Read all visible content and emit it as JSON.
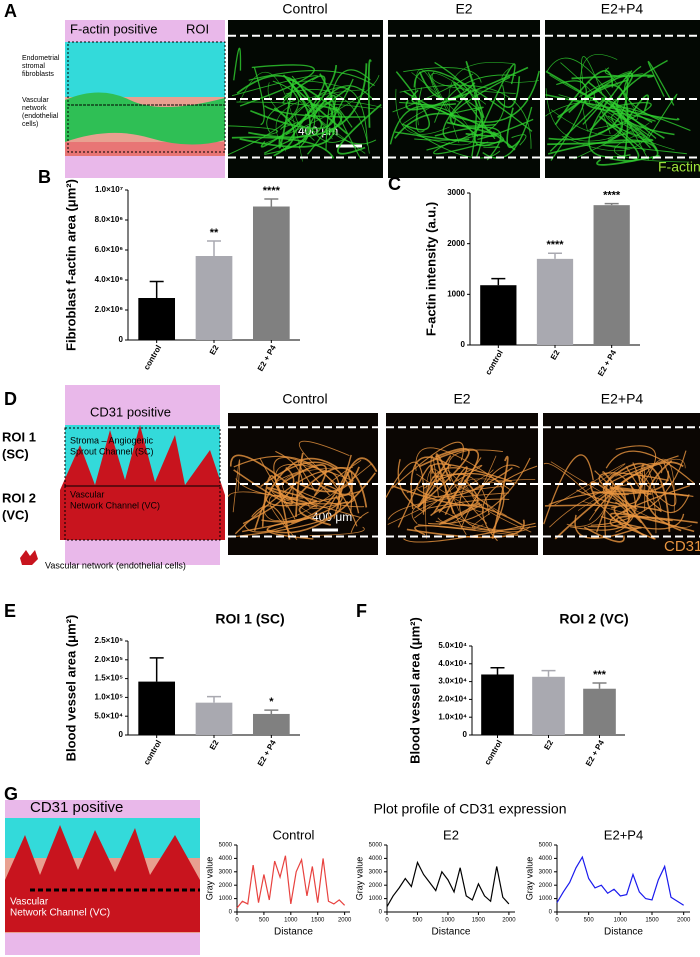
{
  "panels": {
    "A": {
      "label": "A",
      "schematic_title": "F-actin positive",
      "roi": "ROI",
      "fibroblast_label": [
        "Endometrial",
        "stromal",
        "fibroblasts"
      ],
      "vascular_label": [
        "Vascular",
        "network",
        "(endothelial",
        "cells)"
      ],
      "image_titles": [
        "Control",
        "E2",
        "E2+P4"
      ],
      "scale": "400 μm",
      "stain": "F-actin"
    },
    "B": {
      "label": "B"
    },
    "C": {
      "label": "C"
    },
    "D": {
      "label": "D",
      "schematic_title": "CD31 positive",
      "roi1": [
        "ROI 1",
        "(SC)"
      ],
      "roi2": [
        "ROI 2",
        "(VC)"
      ],
      "sc_label": [
        "Stroma – Angiogenic",
        "Sprout Channel (SC)"
      ],
      "vc_label": [
        "Vascular",
        "Network Channel (VC)"
      ],
      "legend": "Vascular  network (endothelial cells)",
      "image_titles": [
        "Control",
        "E2",
        "E2+P4"
      ],
      "scale": "400 μm",
      "stain": "CD31"
    },
    "E": {
      "label": "E"
    },
    "F": {
      "label": "F"
    },
    "G": {
      "label": "G",
      "schematic_title": "CD31 positive",
      "vc_label": [
        "Vascular",
        "Network Channel (VC)"
      ],
      "title": "Plot profile of CD31 expression"
    }
  },
  "chart_data": [
    {
      "type": "bar",
      "y_label": "Fibroblast f-actin area (μm²)",
      "categories": [
        "control",
        "E2",
        "E2 + P4"
      ],
      "colors": [
        "#000000",
        "#a9a9b0",
        "#808080"
      ],
      "values": [
        2800000,
        5600000,
        8900000
      ],
      "errors": [
        1100000,
        1000000,
        500000
      ],
      "annotations": [
        null,
        "**",
        "****"
      ],
      "ylim": [
        0,
        10000000
      ],
      "yticks": [
        0,
        {
          "value": 2000000,
          "label": "2.0×10⁶"
        },
        {
          "value": 4000000,
          "label": "4.0×10⁶"
        },
        {
          "value": 6000000,
          "label": "6.0×10⁶"
        },
        {
          "value": 8000000,
          "label": "8.0×10⁶"
        },
        {
          "value": 10000000,
          "label": "1.0×10⁷"
        }
      ]
    },
    {
      "type": "bar",
      "y_label": "F-actin intensity (a.u.)",
      "categories": [
        "control",
        "E2",
        "E2 + P4"
      ],
      "colors": [
        "#000000",
        "#a9a9b0",
        "#808080"
      ],
      "values": [
        1180,
        1700,
        2760
      ],
      "errors": [
        130,
        110,
        30
      ],
      "annotations": [
        null,
        "****",
        "****"
      ],
      "ylim": [
        0,
        3000
      ],
      "yticks": [
        0,
        1000,
        2000,
        3000
      ]
    },
    {
      "type": "bar",
      "title": "ROI 1 (SC)",
      "y_label": "Blood vessel area (μm²)",
      "categories": [
        "control",
        "E2",
        "E2 + P4"
      ],
      "colors": [
        "#000000",
        "#a9a9b0",
        "#808080"
      ],
      "values": [
        142000,
        86000,
        56000
      ],
      "errors": [
        63000,
        16000,
        10000
      ],
      "annotations": [
        null,
        null,
        "*"
      ],
      "ylim": [
        0,
        250000
      ],
      "yticks": [
        0,
        {
          "value": 50000,
          "label": "5.0×10⁴"
        },
        {
          "value": 100000,
          "label": "1.0×10⁵"
        },
        {
          "value": 150000,
          "label": "1.5×10⁵"
        },
        {
          "value": 200000,
          "label": "2.0×10⁵"
        },
        {
          "value": 250000,
          "label": "2.5×10⁵"
        }
      ]
    },
    {
      "type": "bar",
      "title": "ROI 2 (VC)",
      "y_label": "Blood vessel area (μm²)",
      "categories": [
        "control",
        "E2",
        "E2 + P4"
      ],
      "colors": [
        "#000000",
        "#a9a9b0",
        "#808080"
      ],
      "values": [
        34000,
        32700,
        26000
      ],
      "errors": [
        3800,
        3500,
        3200
      ],
      "annotations": [
        null,
        null,
        "***"
      ],
      "ylim": [
        0,
        50000
      ],
      "yticks": [
        0,
        {
          "value": 10000,
          "label": "1.0×10⁴"
        },
        {
          "value": 20000,
          "label": "2.0×10⁴"
        },
        {
          "value": 30000,
          "label": "3.0×10⁴"
        },
        {
          "value": 40000,
          "label": "4.0×10⁴"
        },
        {
          "value": 50000,
          "label": "5.0×10⁴"
        }
      ]
    },
    {
      "type": "line",
      "title": "Control",
      "x_label": "Distance",
      "y_label": "Gray value",
      "color": "#e8423f",
      "x": [
        0,
        100,
        200,
        300,
        400,
        500,
        600,
        700,
        800,
        900,
        1000,
        1100,
        1200,
        1300,
        1400,
        1500,
        1600,
        1700,
        1800,
        1900,
        2000
      ],
      "values": [
        300,
        800,
        600,
        3500,
        700,
        2800,
        900,
        3800,
        2600,
        4200,
        600,
        3000,
        3900,
        1200,
        3400,
        700,
        4000,
        800,
        600,
        900,
        500
      ],
      "xlim": [
        0,
        2100
      ],
      "ylim": [
        0,
        5000
      ],
      "xticks": [
        0,
        500,
        1000,
        1500,
        2000
      ],
      "yticks": [
        0,
        1000,
        2000,
        3000,
        4000,
        5000
      ]
    },
    {
      "type": "line",
      "title": "E2",
      "x_label": "Distance",
      "y_label": "Gray value",
      "color": "#000000",
      "x": [
        0,
        100,
        200,
        300,
        400,
        500,
        600,
        700,
        800,
        900,
        1000,
        1100,
        1200,
        1300,
        1400,
        1500,
        1600,
        1700,
        1800,
        1900,
        2000
      ],
      "values": [
        400,
        1200,
        1800,
        2500,
        1900,
        3700,
        2800,
        2200,
        1600,
        3000,
        2400,
        1500,
        3300,
        1200,
        900,
        2100,
        1200,
        800,
        3400,
        1100,
        600
      ],
      "xlim": [
        0,
        2100
      ],
      "ylim": [
        0,
        5000
      ],
      "xticks": [
        0,
        500,
        1000,
        1500,
        2000
      ],
      "yticks": [
        0,
        1000,
        2000,
        3000,
        4000,
        5000
      ]
    },
    {
      "type": "line",
      "title": "E2+P4",
      "x_label": "Distance",
      "y_label": "Gray value",
      "color": "#1a1aee",
      "x": [
        0,
        100,
        200,
        300,
        400,
        500,
        600,
        700,
        800,
        900,
        1000,
        1100,
        1200,
        1300,
        1400,
        1500,
        1600,
        1700,
        1800,
        1900,
        2000
      ],
      "values": [
        700,
        1500,
        2200,
        3300,
        4100,
        2500,
        1800,
        2000,
        1400,
        1700,
        1200,
        1300,
        2800,
        1500,
        1000,
        900,
        2400,
        3400,
        1100,
        800,
        500
      ],
      "xlim": [
        0,
        2100
      ],
      "ylim": [
        0,
        5000
      ],
      "xticks": [
        0,
        500,
        1000,
        1500,
        2000
      ],
      "yticks": [
        0,
        1000,
        2000,
        3000,
        4000,
        5000
      ]
    }
  ]
}
